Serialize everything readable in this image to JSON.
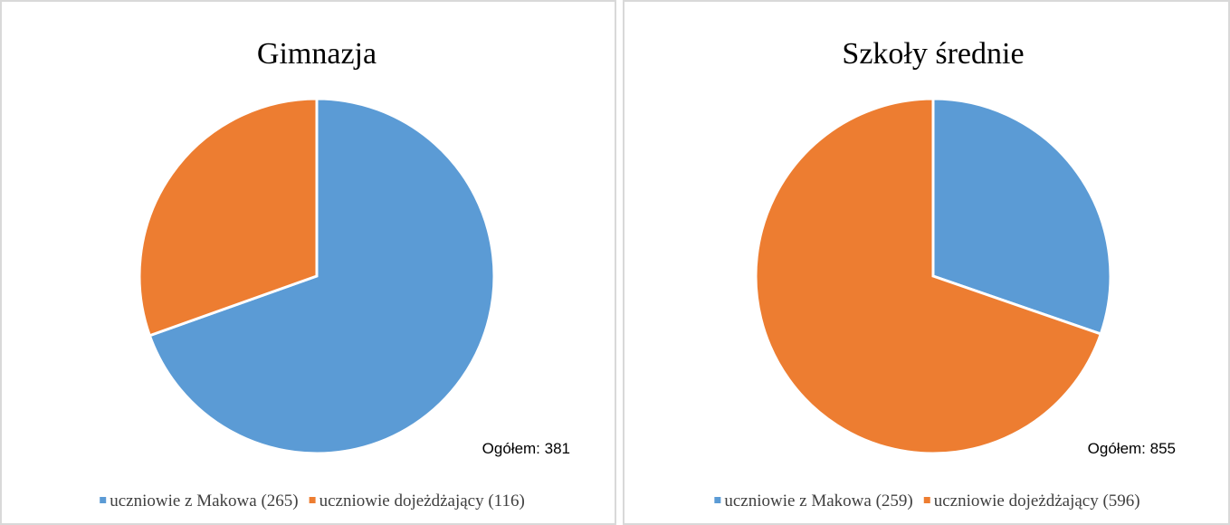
{
  "chart_data": [
    {
      "type": "pie",
      "title": "Gimnazja",
      "categories": [
        "uczniowie z Makowa (265)",
        "uczniowie dojeżdżający (116)"
      ],
      "values": [
        265,
        116
      ],
      "colors": [
        "#5b9bd5",
        "#ed7d31"
      ],
      "annotation": "Ogółem: 381"
    },
    {
      "type": "pie",
      "title": "Szkoły średnie",
      "categories": [
        "uczniowie z Makowa (259)",
        "uczniowie dojeżdżający (596)"
      ],
      "values": [
        259,
        596
      ],
      "colors": [
        "#5b9bd5",
        "#ed7d31"
      ],
      "annotation": "Ogółem: 855"
    }
  ]
}
